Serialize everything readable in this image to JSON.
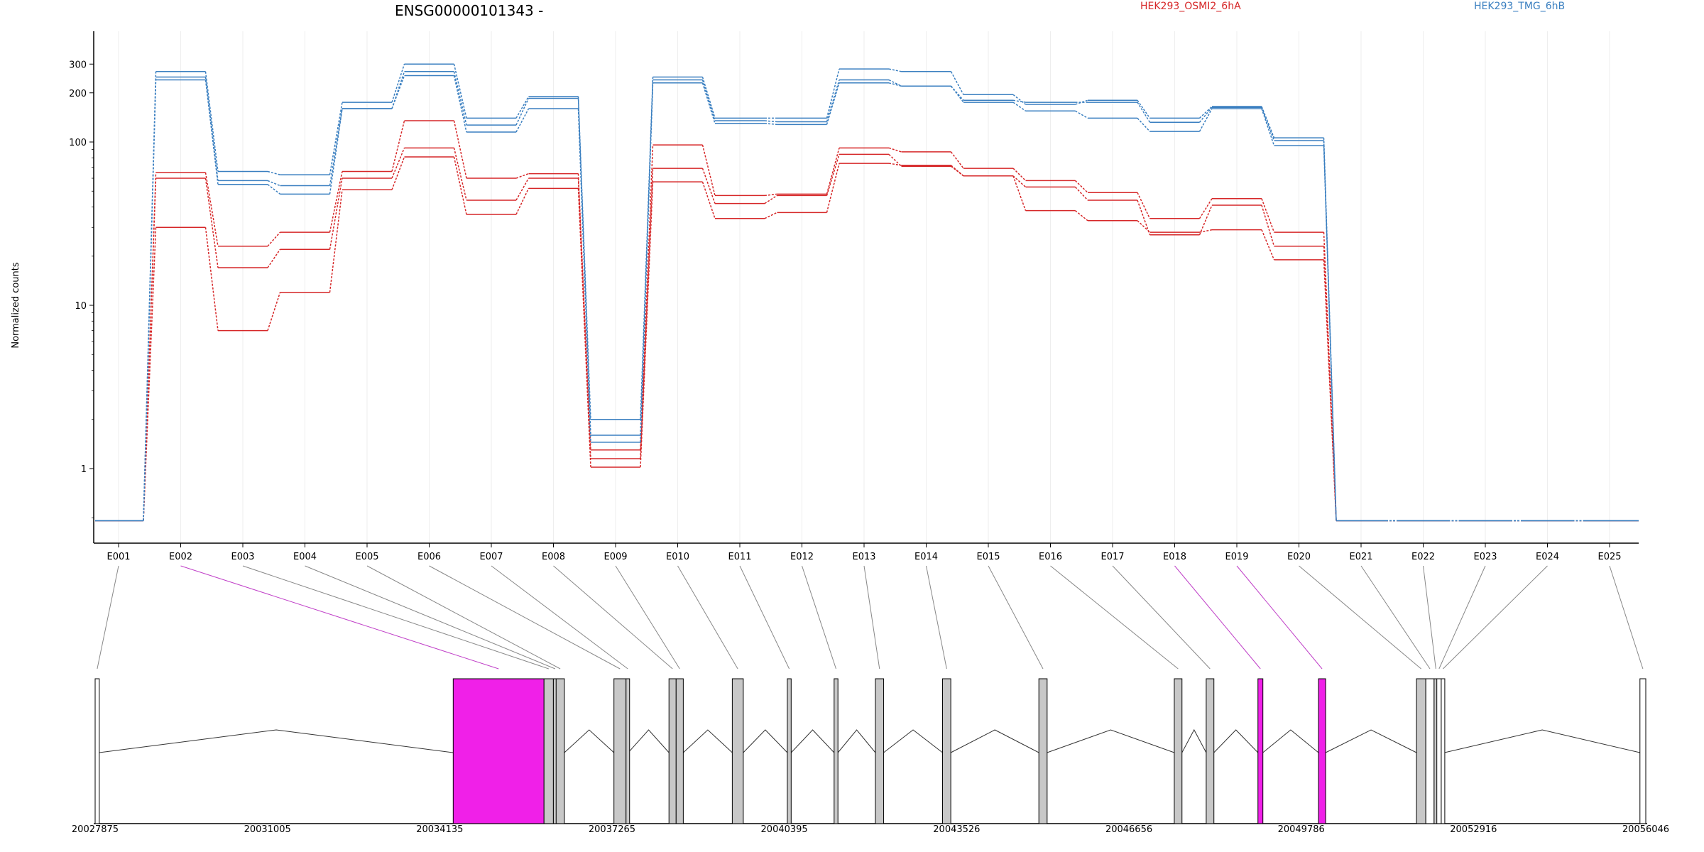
{
  "chart_data": {
    "type": "line",
    "title": "ENSG00000101343 -",
    "ylabel": "Normalized counts",
    "yscale": "log",
    "ylim": [
      0.5,
      400
    ],
    "yticks": [
      1,
      10,
      100,
      200,
      300
    ],
    "categories": [
      "E001",
      "E002",
      "E003",
      "E004",
      "E005",
      "E006",
      "E007",
      "E008",
      "E009",
      "E010",
      "E011",
      "E012",
      "E013",
      "E014",
      "E015",
      "E016",
      "E017",
      "E018",
      "E019",
      "E020",
      "E021",
      "E022",
      "E023",
      "E024",
      "E025"
    ],
    "legend": [
      {
        "label": "HEK293_OSMI2_6hA",
        "color": "#d62728"
      },
      {
        "label": "HEK293_TMG_6hB",
        "color": "#3a7fc0"
      }
    ],
    "series": [
      {
        "group": "HEK293_OSMI2_6hA",
        "color": "#d62728",
        "values": [
          0.48,
          65,
          23,
          28,
          66,
          135,
          60,
          64,
          1.3,
          96,
          47,
          48,
          92,
          87,
          69,
          58,
          49,
          34,
          45,
          28,
          0.48,
          0.48,
          0.48,
          0.48,
          0.48
        ]
      },
      {
        "group": "HEK293_OSMI2_6hA",
        "color": "#d62728",
        "values": [
          0.48,
          60,
          17,
          22,
          60,
          92,
          44,
          60,
          1.15,
          69,
          42,
          47,
          84,
          71,
          62,
          53,
          44,
          27,
          41,
          23,
          0.48,
          0.48,
          0.48,
          0.48,
          0.48
        ]
      },
      {
        "group": "HEK293_OSMI2_6hA",
        "color": "#d62728",
        "values": [
          0.48,
          30,
          7,
          12,
          51,
          81,
          36,
          52,
          1.02,
          57,
          34,
          37,
          74,
          72,
          62,
          38,
          33,
          28,
          29,
          19,
          0.48,
          0.48,
          0.48,
          0.48,
          0.48
        ]
      },
      {
        "group": "HEK293_TMG_6hB",
        "color": "#3a7fc0",
        "values": [
          0.48,
          270,
          66,
          63,
          175,
          300,
          140,
          190,
          2.0,
          250,
          140,
          140,
          280,
          270,
          195,
          170,
          180,
          140,
          165,
          106,
          0.48,
          0.48,
          0.48,
          0.48,
          0.48
        ]
      },
      {
        "group": "HEK293_TMG_6hB",
        "color": "#3a7fc0",
        "values": [
          0.48,
          250,
          58,
          54,
          160,
          270,
          127,
          185,
          1.6,
          240,
          135,
          133,
          240,
          220,
          180,
          175,
          175,
          132,
          163,
          102,
          0.48,
          0.48,
          0.48,
          0.48,
          0.48
        ]
      },
      {
        "group": "HEK293_TMG_6hB",
        "color": "#3a7fc0",
        "values": [
          0.48,
          240,
          55,
          48,
          160,
          255,
          115,
          160,
          1.45,
          230,
          130,
          128,
          230,
          220,
          175,
          155,
          140,
          116,
          160,
          95,
          0.48,
          0.48,
          0.48,
          0.48,
          0.48
        ]
      }
    ],
    "gene_model": {
      "coord_start": 20027875,
      "coord_end": 20056046,
      "coord_ticks": [
        "20027875",
        "20031005",
        "20034135",
        "20037265",
        "20040395",
        "20043526",
        "20046656",
        "20049786",
        "20052916",
        "20056046"
      ],
      "exons": [
        {
          "id": "E001",
          "start": 20027875,
          "end": 20027950,
          "fill": "#ffffff",
          "highlight": false
        },
        {
          "id": "E002",
          "start": 20034380,
          "end": 20036030,
          "fill": "#f020e8",
          "highlight": true
        },
        {
          "id": "E003",
          "start": 20036030,
          "end": 20036200,
          "fill": "#c8c8c8",
          "highlight": false
        },
        {
          "id": "E004",
          "start": 20036200,
          "end": 20036250,
          "fill": "#c8c8c8",
          "highlight": false
        },
        {
          "id": "E005",
          "start": 20036250,
          "end": 20036400,
          "fill": "#c8c8c8",
          "highlight": false
        },
        {
          "id": "E006",
          "start": 20037300,
          "end": 20037520,
          "fill": "#c8c8c8",
          "highlight": false
        },
        {
          "id": "E007",
          "start": 20037520,
          "end": 20037560,
          "fill": "#c8c8c8",
          "highlight": false
        },
        {
          "id": "E008",
          "start": 20038300,
          "end": 20038430,
          "fill": "#c8c8c8",
          "highlight": false
        },
        {
          "id": "E009",
          "start": 20038430,
          "end": 20038560,
          "fill": "#c8c8c8",
          "highlight": false
        },
        {
          "id": "E010",
          "start": 20039450,
          "end": 20039650,
          "fill": "#c8c8c8",
          "highlight": false
        },
        {
          "id": "E011",
          "start": 20040450,
          "end": 20040520,
          "fill": "#c8c8c8",
          "highlight": false
        },
        {
          "id": "E012",
          "start": 20041300,
          "end": 20041370,
          "fill": "#c8c8c8",
          "highlight": false
        },
        {
          "id": "E013",
          "start": 20042050,
          "end": 20042200,
          "fill": "#c8c8c8",
          "highlight": false
        },
        {
          "id": "E014",
          "start": 20043270,
          "end": 20043420,
          "fill": "#c8c8c8",
          "highlight": false
        },
        {
          "id": "E015",
          "start": 20045020,
          "end": 20045170,
          "fill": "#c8c8c8",
          "highlight": false
        },
        {
          "id": "E016",
          "start": 20047480,
          "end": 20047620,
          "fill": "#c8c8c8",
          "highlight": false
        },
        {
          "id": "E017",
          "start": 20048060,
          "end": 20048200,
          "fill": "#c8c8c8",
          "highlight": false
        },
        {
          "id": "E018",
          "start": 20049000,
          "end": 20049090,
          "fill": "#f020e8",
          "highlight": true
        },
        {
          "id": "E019",
          "start": 20050100,
          "end": 20050230,
          "fill": "#f020e8",
          "highlight": true
        },
        {
          "id": "E020",
          "start": 20051880,
          "end": 20052050,
          "fill": "#c8c8c8",
          "highlight": false
        },
        {
          "id": "E021",
          "start": 20052050,
          "end": 20052200,
          "fill": "#ffffff",
          "highlight": false
        },
        {
          "id": "E022",
          "start": 20052200,
          "end": 20052250,
          "fill": "#c8c8c8",
          "highlight": false
        },
        {
          "id": "E023",
          "start": 20052250,
          "end": 20052330,
          "fill": "#ffffff",
          "highlight": false
        },
        {
          "id": "E024",
          "start": 20052330,
          "end": 20052390,
          "fill": "#ffffff",
          "highlight": false
        },
        {
          "id": "E025",
          "start": 20055940,
          "end": 20056046,
          "fill": "#ffffff",
          "highlight": false
        }
      ]
    }
  }
}
